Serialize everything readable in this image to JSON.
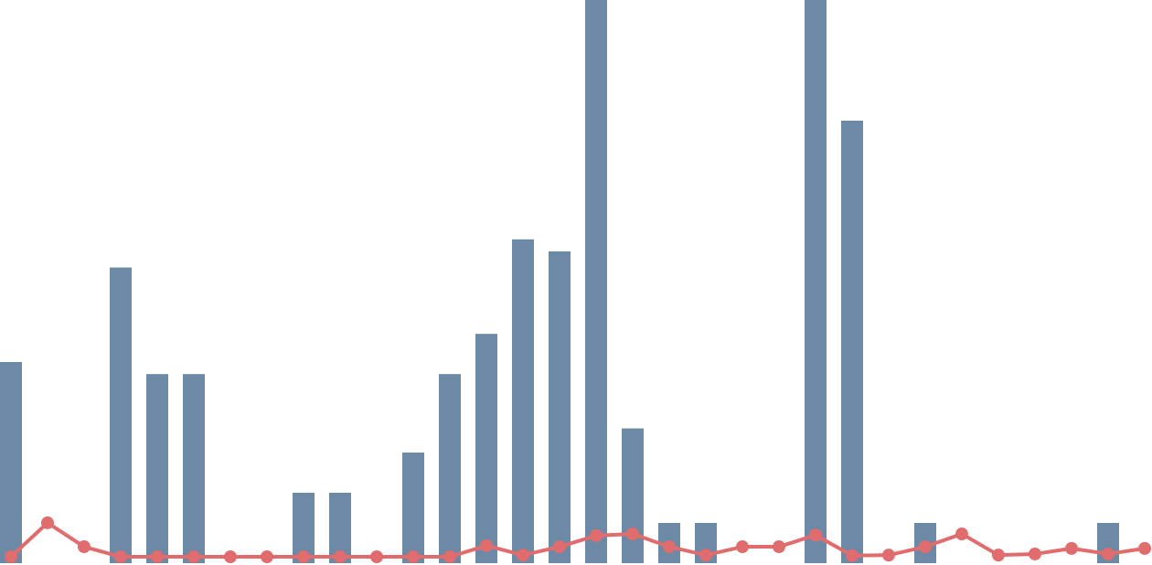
{
  "chart_data": {
    "type": "bar-line",
    "categories": [
      null,
      null,
      null,
      null,
      null,
      null,
      null,
      null,
      null,
      null,
      null,
      null,
      null,
      null,
      null,
      null,
      null,
      null,
      null,
      null,
      null,
      null,
      null,
      null,
      null,
      null,
      null,
      null,
      null,
      null,
      null,
      null
    ],
    "ylim": [
      0,
      28
    ],
    "y2lim": [
      0,
      100
    ],
    "series": [
      {
        "type": "bar",
        "color": "#6c89a5",
        "values": [
          10,
          0,
          0,
          14.7,
          9.4,
          9.4,
          0,
          0,
          3.5,
          3.5,
          0,
          5.5,
          9.4,
          11.4,
          16.1,
          15.5,
          30,
          6.7,
          2,
          2,
          0,
          0,
          30,
          22,
          0,
          2,
          0,
          0,
          0,
          0,
          2,
          0
        ]
      },
      {
        "type": "line",
        "axis": "y2",
        "color": "#e06c6e",
        "values": [
          0,
          6.1,
          1.8,
          0,
          0,
          0,
          0,
          0,
          0,
          0,
          0,
          0,
          0,
          2.0,
          0.3,
          1.8,
          3.8,
          4.1,
          1.8,
          0.3,
          1.8,
          1.8,
          3.9,
          0.2,
          0.3,
          1.8,
          4.1,
          0.3,
          0.5,
          1.5,
          0.5,
          1.5
        ]
      }
    ]
  }
}
